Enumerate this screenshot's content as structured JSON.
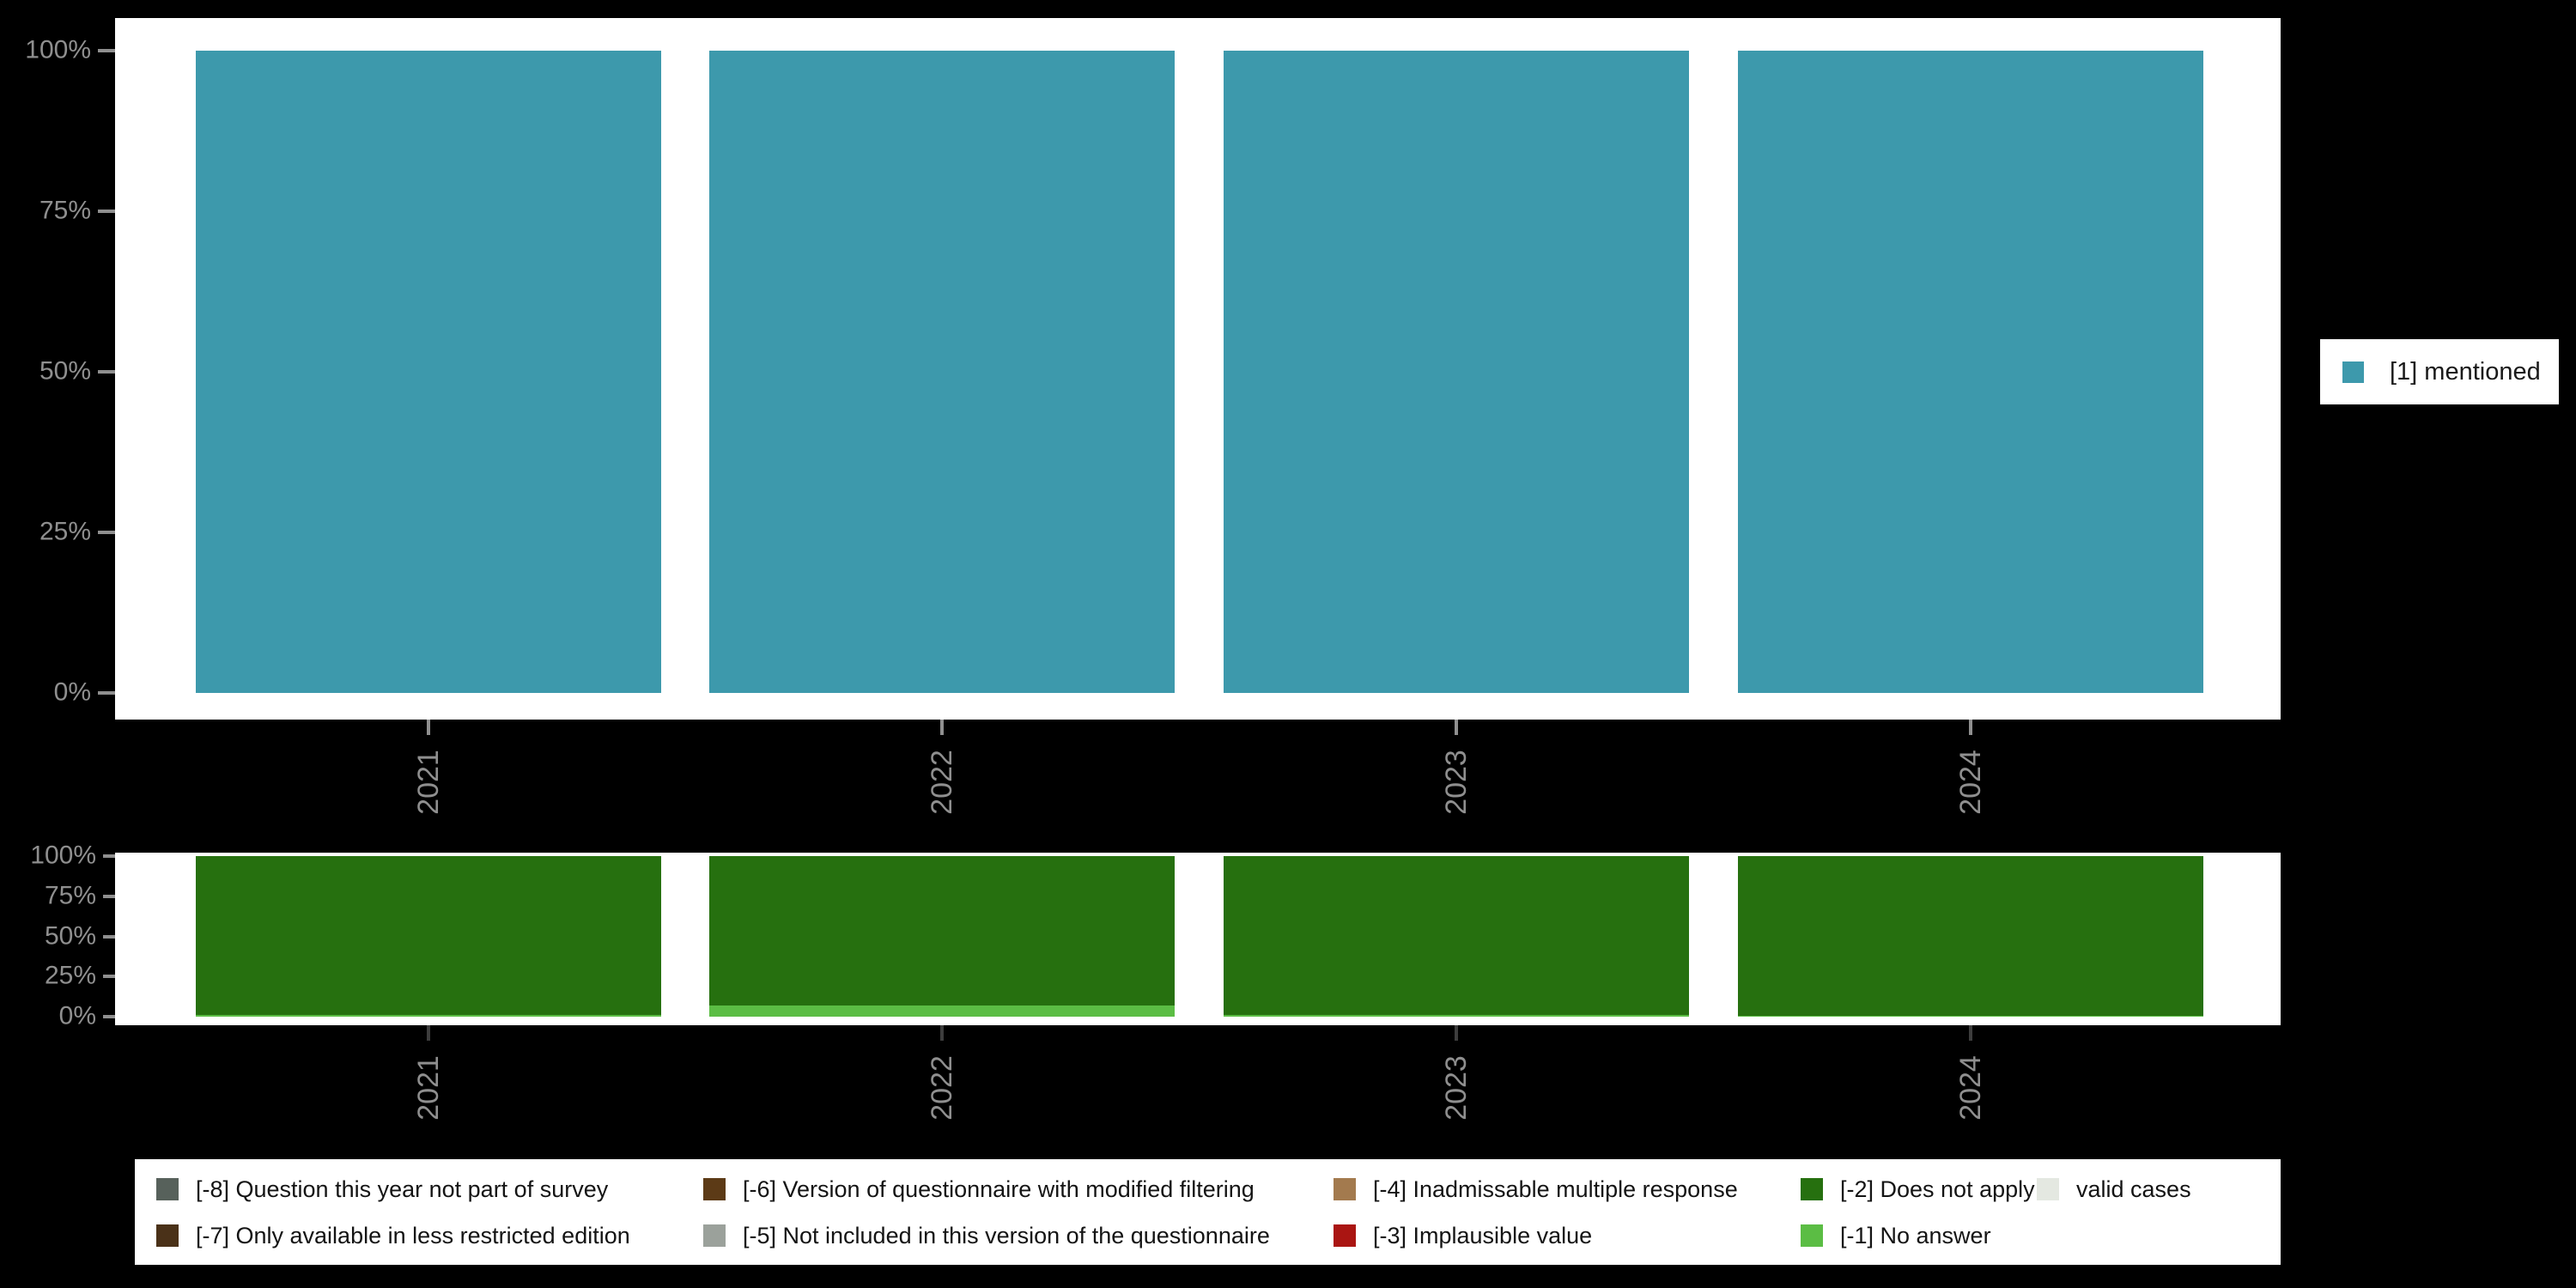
{
  "palette": {
    "mentioned": "#3D99AC",
    "does_not_apply": "#26700F",
    "no_answer": "#5BBD44",
    "question_not_part_of_survey": "#57615B",
    "less_restricted_edition": "#4A3118",
    "modified_filtering": "#5C3A16",
    "not_included_in_version": "#9BA19B",
    "inadmissable_multiple_response": "#A37A4E",
    "implausible_value": "#AA1512",
    "valid_cases": "#E4E8E1",
    "axis_text": "#8F8F8F",
    "x_tick_dark": "#3D3D3D",
    "panel_bg": "#FFFFFF",
    "page_bg": "#000000"
  },
  "top_legend": {
    "label": "[1] mentioned"
  },
  "chart_data": [
    {
      "type": "bar",
      "title": "",
      "categories": [
        "2021",
        "2022",
        "2023",
        "2024"
      ],
      "series": [
        {
          "name": "[1] mentioned",
          "color_key": "mentioned",
          "values": [
            100,
            100,
            100,
            100
          ]
        }
      ],
      "xlabel": "",
      "ylabel": "",
      "yticks": [
        "0%",
        "25%",
        "50%",
        "75%",
        "100%"
      ],
      "ylim": [
        0,
        100
      ],
      "grid": false,
      "legend_position": "right"
    },
    {
      "type": "bar",
      "stacked": true,
      "stack_order": "bottom-to-top",
      "title": "",
      "categories": [
        "2021",
        "2022",
        "2023",
        "2024"
      ],
      "series": [
        {
          "name": "[-1] No answer",
          "color_key": "no_answer",
          "values": [
            1.2,
            7,
            1,
            0.5
          ]
        },
        {
          "name": "[-2] Does not apply",
          "color_key": "does_not_apply",
          "values": [
            98.8,
            93,
            99,
            99.5
          ]
        }
      ],
      "xlabel": "",
      "ylabel": "",
      "yticks": [
        "0%",
        "25%",
        "50%",
        "75%",
        "100%"
      ],
      "ylim": [
        0,
        100
      ],
      "grid": false,
      "legend_position": "bottom"
    }
  ],
  "missing_legend": {
    "columns": [
      {
        "items": [
          {
            "label": "[-8] Question this year not part of survey",
            "color_key": "question_not_part_of_survey"
          },
          {
            "label": "[-7] Only available in less restricted edition",
            "color_key": "less_restricted_edition"
          }
        ]
      },
      {
        "items": [
          {
            "label": "[-6] Version of questionnaire with modified filtering",
            "color_key": "modified_filtering"
          },
          {
            "label": "[-5] Not included in this version of the questionnaire",
            "color_key": "not_included_in_version"
          }
        ]
      },
      {
        "items": [
          {
            "label": "[-4] Inadmissable multiple response",
            "color_key": "inadmissable_multiple_response"
          },
          {
            "label": "[-3] Implausible value",
            "color_key": "implausible_value"
          }
        ]
      },
      {
        "items": [
          {
            "label": "[-2] Does not apply",
            "color_key": "does_not_apply"
          },
          {
            "label": "[-1] No answer",
            "color_key": "no_answer"
          }
        ]
      },
      {
        "items": [
          {
            "label": "valid cases",
            "color_key": "valid_cases"
          }
        ]
      }
    ]
  }
}
